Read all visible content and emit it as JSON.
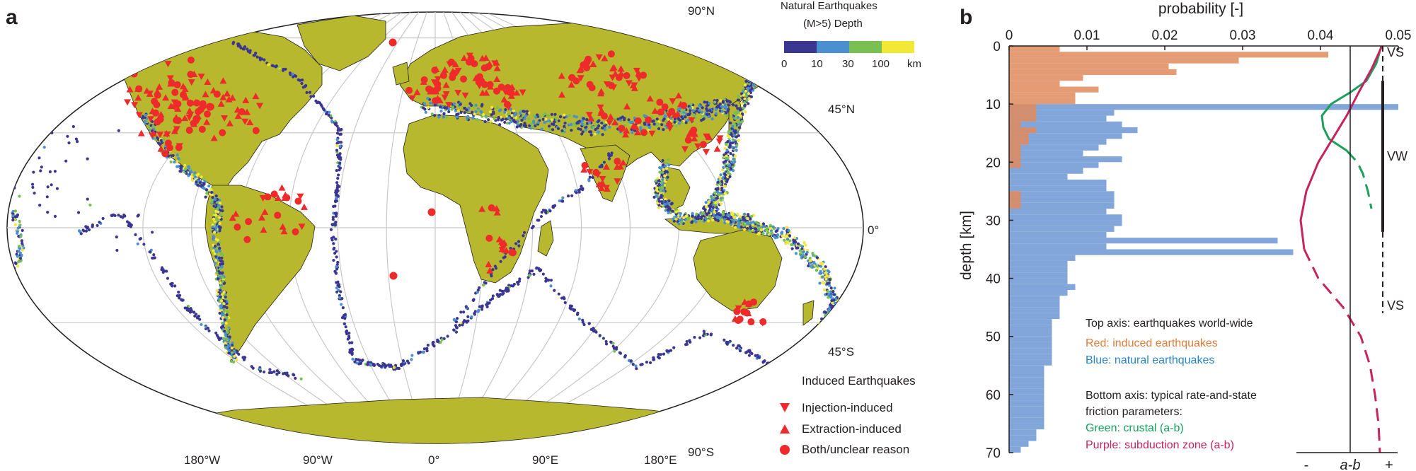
{
  "panel_a": {
    "label": "a",
    "latitude_labels": [
      "90°N",
      "45°N",
      "0°",
      "45°S",
      "90°S"
    ],
    "longitude_labels": [
      "180°W",
      "90°W",
      "0°",
      "90°E",
      "180°E"
    ],
    "depth_legend": {
      "title_line1": "Natural Earthquakes",
      "title_line2": "(M>5) Depth",
      "ticks": [
        "0",
        "10",
        "30",
        "100",
        "km"
      ],
      "colors": [
        "#3b3791",
        "#4a90d1",
        "#79bf52",
        "#f4e837"
      ]
    },
    "induced_legend": {
      "title": "Induced Earthquakes",
      "items": [
        {
          "label": "Injection-induced",
          "icon": "triangle-down-icon"
        },
        {
          "label": "Extraction-induced",
          "icon": "triangle-up-icon"
        },
        {
          "label": "Both/unclear reason",
          "icon": "circle-icon"
        }
      ],
      "color": "#ee2a2a"
    },
    "colors": {
      "land": "#b8b82e",
      "ocean": "#ffffff",
      "grid": "#c8c8c8",
      "natural": "#3b3791",
      "induced": "#ee2a2a"
    }
  },
  "panel_b": {
    "label": "b",
    "annotations": {
      "vs_top": "VS",
      "vw": "VW",
      "vs_bottom": "VS"
    },
    "text_block": {
      "line1": "Top axis: earthquakes world-wide",
      "line2": "Red: induced earthquakes",
      "line3": "Blue: natural earthquakes",
      "line4": "Bottom axis: typical rate-and-state",
      "line5": "friction parameters:",
      "line6": "Green: crustal (a-b)",
      "line7": "Purple: subduction zone (a-b)"
    },
    "bottom_axis": {
      "minus": "-",
      "label": "a-b",
      "plus": "+"
    }
  },
  "chart_data": {
    "type": "bar",
    "orientation": "horizontal",
    "xlabel": "probability [-]",
    "ylabel": "depth [km]",
    "xlim": [
      0,
      0.05
    ],
    "ylim": [
      0,
      70
    ],
    "xticks": [
      "0",
      "0.01",
      "0.02",
      "0.03",
      "0.04",
      "0.05"
    ],
    "yticks": [
      "0",
      "10",
      "20",
      "30",
      "40",
      "50",
      "60",
      "70"
    ],
    "bin_width_km": 1,
    "series": [
      {
        "name": "Red: induced earthquakes",
        "color": "#e0895a",
        "depths": [
          0,
          1,
          2,
          3,
          4,
          5,
          6,
          7,
          8,
          9,
          10,
          11,
          12,
          13,
          14,
          15,
          16,
          17,
          18,
          19,
          20,
          21,
          22,
          23,
          24,
          25,
          26,
          27,
          28,
          29,
          30
        ],
        "values": [
          0.0065,
          0.041,
          0.0295,
          0.0205,
          0.0215,
          0.0095,
          0.0065,
          0.0115,
          0.0085,
          0.0085,
          0.0035,
          0.0035,
          0.0035,
          0.0015,
          0.0035,
          0.0025,
          0.0025,
          0.0015,
          0.0015,
          0.0015,
          0.0015,
          0.0,
          0.0,
          0.0,
          0.0,
          0.0015,
          0.0015,
          0.0015,
          0.0,
          0.0,
          0.0
        ]
      },
      {
        "name": "Blue: natural earthquakes",
        "color": "#7ba1d8",
        "depths": [
          0,
          1,
          2,
          3,
          4,
          5,
          6,
          7,
          8,
          9,
          10,
          11,
          12,
          13,
          14,
          15,
          16,
          17,
          18,
          19,
          20,
          21,
          22,
          23,
          24,
          25,
          26,
          27,
          28,
          29,
          30,
          31,
          32,
          33,
          34,
          35,
          36,
          37,
          38,
          39,
          40,
          41,
          42,
          43,
          44,
          45,
          46,
          47,
          48,
          49,
          50,
          51,
          52,
          53,
          54,
          55,
          56,
          57,
          58,
          59,
          60,
          61,
          62,
          63,
          64,
          65,
          66,
          67,
          68,
          69
        ],
        "values": [
          0.0,
          0.0,
          0.0,
          0.0,
          0.0,
          0.0,
          0.0,
          0.0,
          0.0,
          0.0,
          0.05,
          0.0135,
          0.0125,
          0.0145,
          0.0165,
          0.0145,
          0.0125,
          0.0115,
          0.0095,
          0.0145,
          0.0115,
          0.0095,
          0.0075,
          0.0125,
          0.0125,
          0.0135,
          0.0135,
          0.0135,
          0.0125,
          0.0145,
          0.0145,
          0.0135,
          0.0125,
          0.0345,
          0.0125,
          0.0365,
          0.0085,
          0.0075,
          0.0075,
          0.0075,
          0.0075,
          0.0085,
          0.0075,
          0.0065,
          0.0065,
          0.0065,
          0.0065,
          0.0055,
          0.0055,
          0.0055,
          0.0055,
          0.0055,
          0.0055,
          0.0055,
          0.0055,
          0.0045,
          0.0045,
          0.0045,
          0.0045,
          0.0045,
          0.0045,
          0.0045,
          0.0045,
          0.0045,
          0.0045,
          0.0045,
          0.0035,
          0.0035,
          0.0025,
          0.0015
        ]
      }
    ],
    "friction_curves": [
      {
        "name": "Green: crustal (a-b)",
        "color": "#1aa05a",
        "depths": [
          0,
          3,
          6,
          8,
          10,
          12,
          14,
          16,
          18,
          20,
          22,
          25,
          28
        ],
        "a_minus_b": [
          0.044,
          0.037,
          0.023,
          0.0,
          -0.027,
          -0.04,
          -0.038,
          -0.03,
          -0.005,
          0.01,
          0.018,
          0.025,
          0.03
        ],
        "solid_to_depth": 19
      },
      {
        "name": "Purple: subduction zone (a-b)",
        "color": "#c5245f",
        "depths": [
          0,
          4,
          8,
          12,
          16,
          20,
          25,
          30,
          35,
          40,
          45,
          50,
          55,
          60,
          65,
          70
        ],
        "a_minus_b": [
          0.045,
          0.03,
          0.012,
          -0.005,
          -0.025,
          -0.045,
          -0.062,
          -0.07,
          -0.065,
          -0.045,
          -0.01,
          0.015,
          0.028,
          0.035,
          0.04,
          0.042
        ],
        "solid_to_depth": 37
      }
    ],
    "velocity_markers": [
      {
        "label": "VS",
        "from": 0,
        "to": 6,
        "style": "dashed"
      },
      {
        "label": "VW",
        "from": 6,
        "to": 32,
        "style": "solid"
      },
      {
        "label": "VS",
        "from": 32,
        "to": 46,
        "style": "dashed"
      }
    ]
  }
}
